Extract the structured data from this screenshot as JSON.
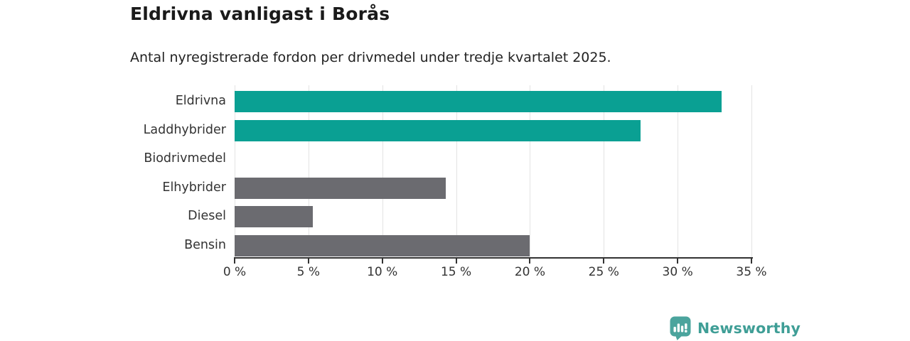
{
  "chart_data": {
    "type": "bar",
    "orientation": "horizontal",
    "title": "Eldrivna vanligast i Borås",
    "subtitle": "Antal nyregistrerade fordon per drivmedel under tredje kvartalet 2025.",
    "categories": [
      "Eldrivna",
      "Laddhybrider",
      "Biodrivmedel",
      "Elhybrider",
      "Diesel",
      "Bensin"
    ],
    "values": [
      33,
      27.5,
      0,
      14.3,
      5.3,
      20
    ],
    "bar_colors": [
      "#0aa093",
      "#0aa093",
      "#0aa093",
      "#6b6b70",
      "#6b6b70",
      "#6b6b70"
    ],
    "xlabel": "",
    "ylabel": "",
    "xlim": [
      0,
      35
    ],
    "x_ticks": [
      0,
      5,
      10,
      15,
      20,
      25,
      30,
      35
    ],
    "x_tick_suffix": " %",
    "grid": true,
    "legend": false
  },
  "colors": {
    "teal": "#0aa093",
    "gray": "#6b6b70",
    "gridline": "#e3e3e3",
    "axis": "#333333",
    "text": "#333333",
    "logo_teal": "#3f9e96"
  },
  "footer": {
    "brand": "Newsworthy",
    "logo_icon": "newsworthy-pin-barchart-icon"
  }
}
